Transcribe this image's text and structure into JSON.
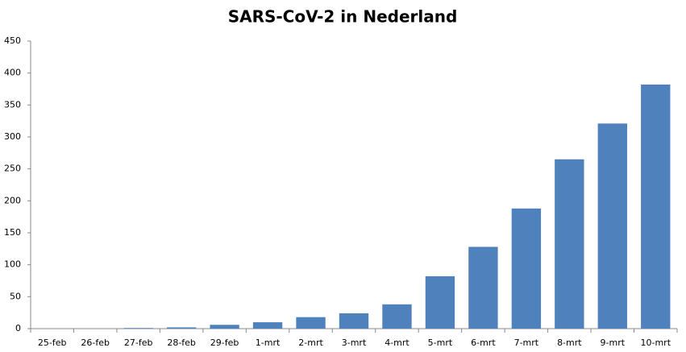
{
  "chart_data": {
    "type": "bar",
    "title": "SARS-CoV-2 in Nederland",
    "categories": [
      "25-feb",
      "26-feb",
      "27-feb",
      "28-feb",
      "29-feb",
      "1-mrt",
      "2-mrt",
      "3-mrt",
      "4-mrt",
      "5-mrt",
      "6-mrt",
      "7-mrt",
      "8-mrt",
      "9-mrt",
      "10-mrt"
    ],
    "values": [
      0,
      0,
      1,
      2,
      6,
      10,
      18,
      24,
      38,
      82,
      128,
      188,
      265,
      321,
      382
    ],
    "color": "#4f81bd",
    "ylim": [
      0,
      450
    ],
    "yticks": [
      0,
      50,
      100,
      150,
      200,
      250,
      300,
      350,
      400,
      450
    ],
    "grid": false
  }
}
